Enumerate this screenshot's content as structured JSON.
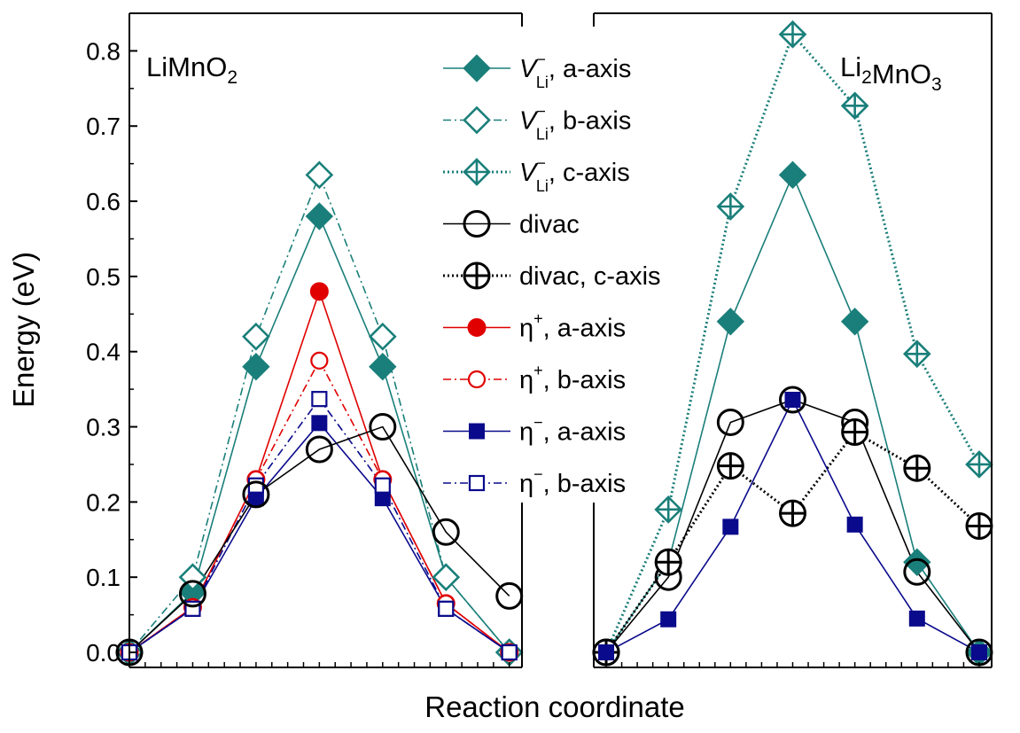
{
  "figure": {
    "xlabel": "Reaction coordinate",
    "ylabel": "Energy (eV)"
  },
  "chart_data": [
    {
      "type": "line",
      "panel_label": "LiMnO₂",
      "x": [
        0,
        1,
        2,
        3,
        4,
        5,
        6
      ],
      "xlim": [
        0,
        6.2
      ],
      "ylim": [
        -0.02,
        0.85
      ],
      "yticks": [
        0.0,
        0.1,
        0.2,
        0.3,
        0.4,
        0.5,
        0.6,
        0.7,
        0.8
      ],
      "ytick_labels": [
        "0.0",
        "0.1",
        "0.2",
        "0.3",
        "0.4",
        "0.5",
        "0.6",
        "0.7",
        "0.8"
      ],
      "series": [
        {
          "name": "V_Li⁻, a-axis",
          "values": [
            0,
            0.08,
            0.38,
            0.58,
            0.38,
            0.1,
            0
          ],
          "color": "#1a7f7a",
          "marker": "diamond-filled",
          "linestyle": "solid"
        },
        {
          "name": "V_Li⁻, b-axis",
          "values": [
            0,
            0.1,
            0.42,
            0.635,
            0.42,
            0.1,
            0
          ],
          "color": "#1a7f7a",
          "marker": "diamond-open",
          "linestyle": "dashdot"
        },
        {
          "name": "η⁺, a-axis",
          "values": [
            0,
            0.06,
            0.23,
            0.48,
            0.23,
            0.065,
            0
          ],
          "color": "#e00000",
          "marker": "circle-filled",
          "linestyle": "solid"
        },
        {
          "name": "η⁺, b-axis",
          "values": [
            0,
            0.06,
            0.23,
            0.388,
            0.23,
            0.065,
            0
          ],
          "color": "#e00000",
          "marker": "circle-open",
          "linestyle": "dashdot"
        },
        {
          "name": "η⁻, a-axis",
          "values": [
            0,
            0.058,
            0.205,
            0.305,
            0.205,
            0.058,
            0
          ],
          "color": "#0a0a8c",
          "marker": "square-filled",
          "linestyle": "solid"
        },
        {
          "name": "η⁻, b-axis",
          "values": [
            0,
            0.058,
            0.222,
            0.337,
            0.222,
            0.058,
            0
          ],
          "color": "#0a0a8c",
          "marker": "square-open",
          "linestyle": "dashdot"
        },
        {
          "name": "divac",
          "values": [
            0,
            0.078,
            0.21,
            0.27,
            0.3,
            0.16,
            0.075
          ],
          "color": "#000000",
          "marker": "circle-open-large",
          "linestyle": "solid"
        }
      ]
    },
    {
      "type": "line",
      "panel_label": "Li₂MnO₃",
      "x": [
        0,
        1,
        2,
        3,
        4,
        5,
        6
      ],
      "xlim": [
        -0.2,
        6.2
      ],
      "ylim": [
        -0.02,
        0.85
      ],
      "series": [
        {
          "name": "V_Li⁻, a-axis",
          "values": [
            0,
            0.12,
            0.44,
            0.635,
            0.44,
            0.12,
            0
          ],
          "color": "#1a7f7a",
          "marker": "diamond-filled",
          "linestyle": "solid"
        },
        {
          "name": "V_Li⁻, c-axis",
          "values": [
            0,
            0.19,
            0.593,
            0.822,
            0.727,
            0.397,
            0.25
          ],
          "color": "#1a7f7a",
          "marker": "diamond-cross",
          "linestyle": "dotted"
        },
        {
          "name": "divac",
          "values": [
            0,
            0.1,
            0.306,
            0.336,
            0.306,
            0.107,
            0
          ],
          "color": "#000000",
          "marker": "circle-open-large",
          "linestyle": "solid"
        },
        {
          "name": "divac, c-axis",
          "values": [
            0,
            0.12,
            0.248,
            0.185,
            0.293,
            0.245,
            0.168
          ],
          "color": "#000000",
          "marker": "circle-cross",
          "linestyle": "dotted"
        },
        {
          "name": "η⁻, a-axis",
          "values": [
            0,
            0.044,
            0.167,
            0.336,
            0.17,
            0.045,
            0
          ],
          "color": "#0a0a8c",
          "marker": "square-filled",
          "linestyle": "solid"
        }
      ]
    }
  ],
  "legend": {
    "placement": "top-center",
    "entries": [
      {
        "base": "V",
        "sup": "−",
        "sub": "Li",
        "text": ", a-axis",
        "color": "#1a7f7a",
        "marker": "diamond-filled",
        "linestyle": "solid"
      },
      {
        "base": "V",
        "sup": "−",
        "sub": "Li",
        "text": ", b-axis",
        "color": "#1a7f7a",
        "marker": "diamond-open",
        "linestyle": "dashdot"
      },
      {
        "base": "V",
        "sup": "−",
        "sub": "Li",
        "text": ", c-axis",
        "color": "#1a7f7a",
        "marker": "diamond-cross",
        "linestyle": "dotted"
      },
      {
        "base": "",
        "sup": "",
        "sub": "",
        "text": "divac",
        "color": "#000000",
        "marker": "circle-open-large",
        "linestyle": "solid"
      },
      {
        "base": "",
        "sup": "",
        "sub": "",
        "text": "divac, c-axis",
        "color": "#000000",
        "marker": "circle-cross",
        "linestyle": "dotted"
      },
      {
        "base": "η",
        "sup": "+",
        "sub": "",
        "text": ", a-axis",
        "color": "#e00000",
        "marker": "circle-filled",
        "linestyle": "solid"
      },
      {
        "base": "η",
        "sup": "+",
        "sub": "",
        "text": ", b-axis",
        "color": "#e00000",
        "marker": "circle-open",
        "linestyle": "dashdot"
      },
      {
        "base": "η",
        "sup": "−",
        "sub": "",
        "text": ", a-axis",
        "color": "#0a0a8c",
        "marker": "square-filled",
        "linestyle": "solid"
      },
      {
        "base": "η",
        "sup": "−",
        "sub": "",
        "text": ", b-axis",
        "color": "#0a0a8c",
        "marker": "square-open",
        "linestyle": "dashdot"
      }
    ]
  }
}
